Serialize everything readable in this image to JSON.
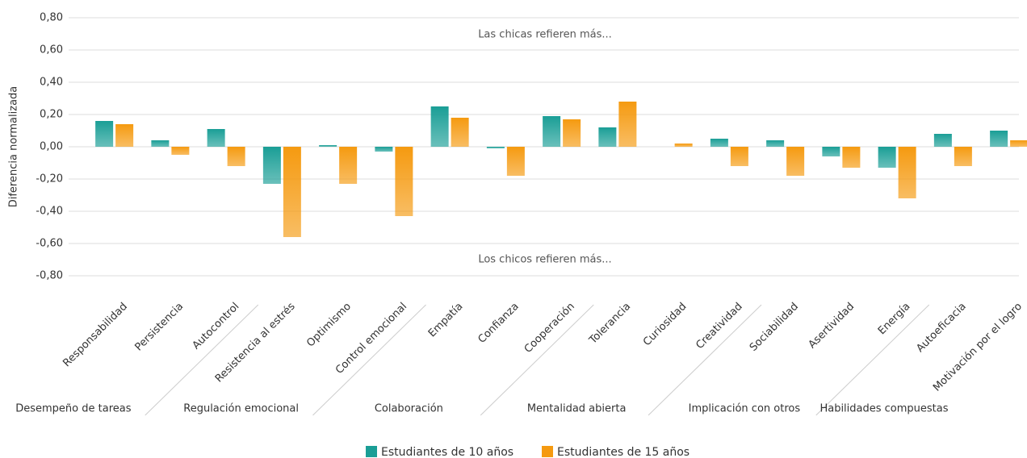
{
  "chart_data": {
    "type": "bar",
    "ylabel": "Diferencia normalizada",
    "annotations": [
      "Las chicas refieren más...",
      "Los chicos refieren más..."
    ],
    "groups": [
      {
        "label": "Desempeño de tareas",
        "categories": [
          "Responsabilidad",
          "Persistencia",
          "Autocontrol"
        ]
      },
      {
        "label": "Regulación emocional",
        "categories": [
          "Resistencia al estrés",
          "Optimismo",
          "Control emocional"
        ]
      },
      {
        "label": "Colaboración",
        "categories": [
          "Empatía",
          "Confianza",
          "Cooperación"
        ]
      },
      {
        "label": "Mentalidad abierta",
        "categories": [
          "Tolerancia",
          "Curiosidad",
          "Creatividad"
        ]
      },
      {
        "label": "Implicación con otros",
        "categories": [
          "Sociabilidad",
          "Asertividad",
          "Energía"
        ]
      },
      {
        "label": "Habilidades compuestas",
        "categories": [
          "Autoeficacia",
          "Motivación por el logro"
        ]
      }
    ],
    "series": [
      {
        "name": "Estudiantes de 10 años",
        "color": "#1a9e96",
        "values": [
          0.16,
          0.04,
          0.11,
          -0.23,
          0.01,
          -0.03,
          0.25,
          -0.01,
          0.19,
          0.12,
          null,
          0.05,
          0.04,
          -0.06,
          -0.13,
          0.08,
          0.1
        ]
      },
      {
        "name": "Estudiantes de 15 años",
        "color": "#f59a10",
        "values": [
          0.14,
          -0.05,
          -0.12,
          -0.56,
          -0.23,
          -0.43,
          0.18,
          -0.18,
          0.17,
          0.28,
          0.02,
          -0.12,
          -0.18,
          -0.13,
          -0.32,
          -0.12,
          0.04
        ]
      }
    ],
    "ylim": [
      -0.8,
      0.8
    ],
    "yticks": [
      {
        "value": -0.8,
        "label": "-0,80"
      },
      {
        "value": -0.6,
        "label": "-0,60"
      },
      {
        "value": -0.4,
        "label": "-0,40"
      },
      {
        "value": -0.2,
        "label": "-0,20"
      },
      {
        "value": 0,
        "label": "0,00"
      },
      {
        "value": 0.2,
        "label": "0,20"
      },
      {
        "value": 0.4,
        "label": "0,40"
      },
      {
        "value": 0.6,
        "label": "0,60"
      },
      {
        "value": 0.8,
        "label": "0,80"
      }
    ],
    "grid": true,
    "legend": "bottom"
  }
}
